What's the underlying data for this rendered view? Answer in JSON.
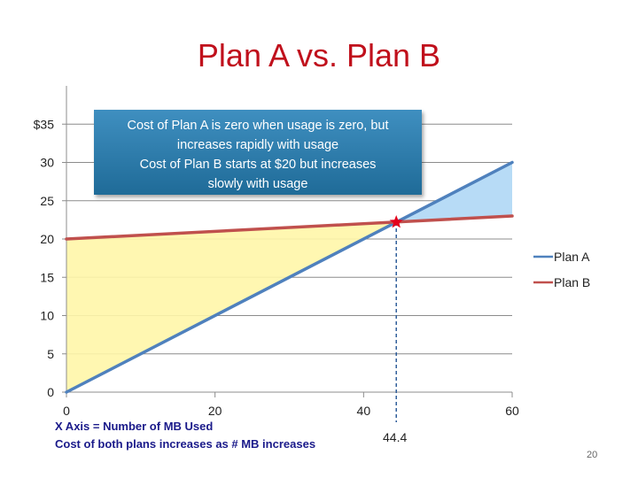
{
  "slide": {
    "title": "Plan A vs. Plan B",
    "callout_lines": [
      "Cost of Plan A is zero when usage is zero, but",
      "increases rapidly  with usage",
      "Cost of Plan B starts at $20 but increases",
      "slowly with usage"
    ],
    "x_axis_notes": [
      "X Axis = Number of MB Used",
      "Cost of both plans  increases  as # MB increases"
    ],
    "intersection_label": "44.4",
    "slide_number": "20"
  },
  "colors": {
    "title": "#c0101c",
    "plan_a": "#4f81bd",
    "plan_b": "#c0504d",
    "region_left": "#fff6a8",
    "region_right": "#b7dbf6",
    "star": "#e3001b",
    "callout": "#2a7bad"
  },
  "chart_data": {
    "type": "line",
    "x": [
      0,
      60
    ],
    "xlim": [
      0,
      60
    ],
    "ylim": [
      0,
      40
    ],
    "x_ticks": [
      0,
      20,
      40,
      60
    ],
    "y_ticks": [
      0,
      5,
      10,
      15,
      20,
      25,
      30,
      35
    ],
    "y_tick_labels": [
      "0",
      "5",
      "10",
      "15",
      "20",
      "25",
      "30",
      "$35"
    ],
    "grid": "horizontal",
    "legend_position": "right",
    "series": [
      {
        "name": "Plan A",
        "x": [
          0,
          60
        ],
        "y": [
          0,
          30
        ],
        "color": "#4f81bd"
      },
      {
        "name": "Plan B",
        "x": [
          0,
          60
        ],
        "y": [
          20,
          23
        ],
        "color": "#c0504d"
      }
    ],
    "intersection": {
      "x": 44.4,
      "y": 22.2
    }
  }
}
